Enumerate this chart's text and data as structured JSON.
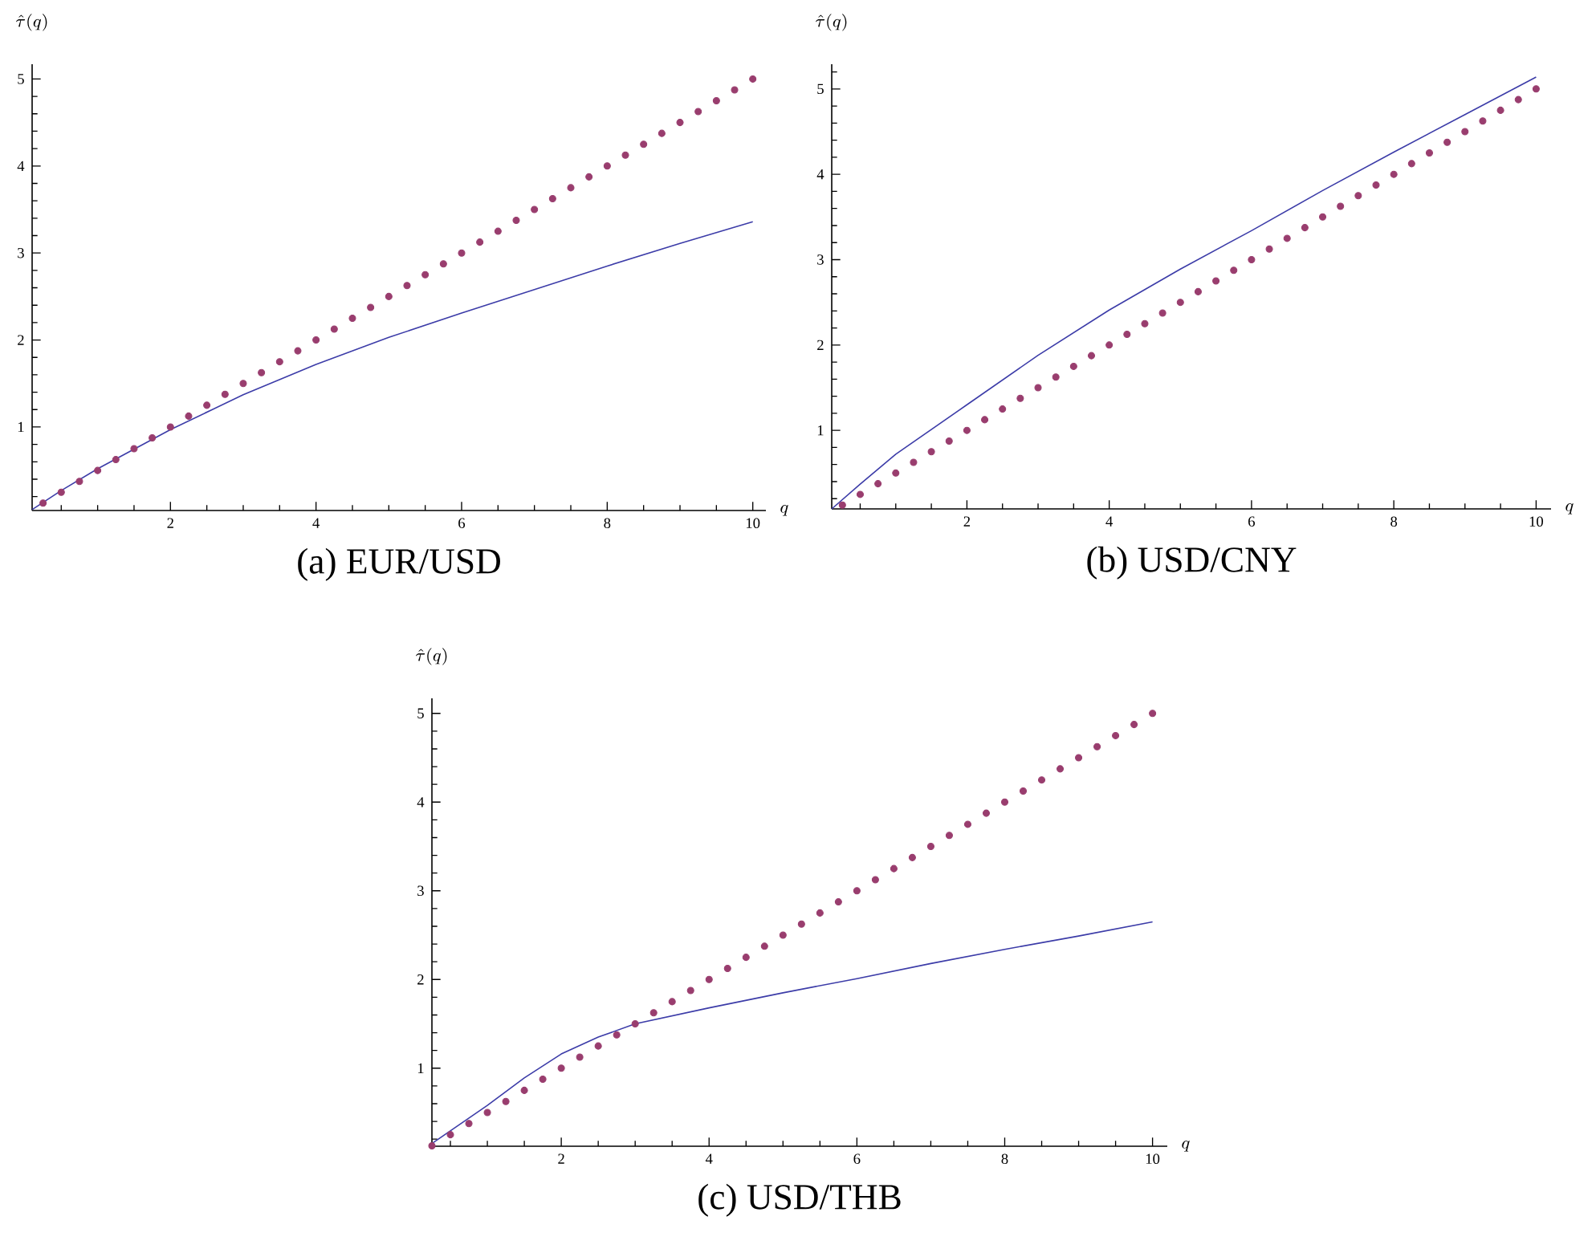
{
  "chart_data": [
    {
      "type": "line",
      "title": "(a) EUR/USD",
      "xlabel": "q",
      "ylabel": "\\hat{\\tau}(q)",
      "xlim": [
        0.1,
        10.18
      ],
      "ylim": [
        0.04,
        5.17
      ],
      "xticks": [
        {
          "value": 0.5,
          "label": null
        },
        {
          "value": 1,
          "label": null
        },
        {
          "value": 1.5,
          "label": null
        },
        2,
        {
          "value": 2.5,
          "label": null
        },
        {
          "value": 3,
          "label": null
        },
        {
          "value": 3.5,
          "label": null
        },
        4,
        {
          "value": 4.5,
          "label": null
        },
        {
          "value": 5,
          "label": null
        },
        {
          "value": 5.5,
          "label": null
        },
        6,
        {
          "value": 6.5,
          "label": null
        },
        {
          "value": 7,
          "label": null
        },
        {
          "value": 7.5,
          "label": null
        },
        8,
        {
          "value": 8.5,
          "label": null
        },
        {
          "value": 9,
          "label": null
        },
        {
          "value": 9.5,
          "label": null
        },
        10
      ],
      "yticks": [
        {
          "value": 0.2,
          "label": null
        },
        {
          "value": 0.4,
          "label": null
        },
        {
          "value": 0.6,
          "label": null
        },
        {
          "value": 0.8,
          "label": null
        },
        1,
        {
          "value": 1.2,
          "label": null
        },
        {
          "value": 1.4,
          "label": null
        },
        {
          "value": 1.6,
          "label": null
        },
        {
          "value": 1.8,
          "label": null
        },
        2,
        {
          "value": 2.2,
          "label": null
        },
        {
          "value": 2.4,
          "label": null
        },
        {
          "value": 2.6,
          "label": null
        },
        {
          "value": 2.8,
          "label": null
        },
        3,
        {
          "value": 3.2,
          "label": null
        },
        {
          "value": 3.4,
          "label": null
        },
        {
          "value": 3.6,
          "label": null
        },
        {
          "value": 3.8,
          "label": null
        },
        4,
        {
          "value": 4.2,
          "label": null
        },
        {
          "value": 4.4,
          "label": null
        },
        {
          "value": 4.6,
          "label": null
        },
        {
          "value": 4.8,
          "label": null
        },
        5
      ],
      "series": [
        {
          "type": "scatter",
          "marker": "circle",
          "color": "#993d6e",
          "x": [
            0.25,
            0.5,
            0.75,
            1,
            1.25,
            1.5,
            1.75,
            2,
            2.25,
            2.5,
            2.75,
            3,
            3.25,
            3.5,
            3.75,
            4,
            4.25,
            4.5,
            4.75,
            5,
            5.25,
            5.5,
            5.75,
            6,
            6.25,
            6.5,
            6.75,
            7,
            7.25,
            7.5,
            7.75,
            8,
            8.25,
            8.5,
            8.75,
            9,
            9.25,
            9.5,
            9.75,
            10
          ],
          "values": [
            0.125,
            0.25,
            0.375,
            0.5,
            0.625,
            0.75,
            0.875,
            1,
            1.125,
            1.25,
            1.375,
            1.5,
            1.625,
            1.75,
            1.875,
            2,
            2.125,
            2.25,
            2.375,
            2.5,
            2.625,
            2.75,
            2.875,
            3,
            3.125,
            3.25,
            3.375,
            3.5,
            3.625,
            3.75,
            3.875,
            4,
            4.125,
            4.25,
            4.375,
            4.5,
            4.625,
            4.75,
            4.875,
            5
          ]
        },
        {
          "color": "#3c3ca8",
          "x": [
            0.1,
            0.5,
            1,
            2,
            3,
            4,
            5,
            6,
            7,
            8,
            9,
            10
          ],
          "values": [
            0.05,
            0.27,
            0.52,
            0.97,
            1.37,
            1.72,
            2.03,
            2.31,
            2.58,
            2.85,
            3.11,
            3.36
          ]
        }
      ]
    },
    {
      "type": "line",
      "title": "(b) USD/CNY",
      "xlabel": "q",
      "ylabel": "\\hat{\\tau}(q)",
      "xlim": [
        0.1,
        10.21
      ],
      "ylim": [
        0.08,
        5.29
      ],
      "xticks": [
        {
          "value": 0.5,
          "label": null
        },
        {
          "value": 1,
          "label": null
        },
        {
          "value": 1.5,
          "label": null
        },
        2,
        {
          "value": 2.5,
          "label": null
        },
        {
          "value": 3,
          "label": null
        },
        {
          "value": 3.5,
          "label": null
        },
        4,
        {
          "value": 4.5,
          "label": null
        },
        {
          "value": 5,
          "label": null
        },
        {
          "value": 5.5,
          "label": null
        },
        6,
        {
          "value": 6.5,
          "label": null
        },
        {
          "value": 7,
          "label": null
        },
        {
          "value": 7.5,
          "label": null
        },
        8,
        {
          "value": 8.5,
          "label": null
        },
        {
          "value": 9,
          "label": null
        },
        {
          "value": 9.5,
          "label": null
        },
        10
      ],
      "yticks": [
        {
          "value": 0.2,
          "label": null
        },
        {
          "value": 0.4,
          "label": null
        },
        {
          "value": 0.6,
          "label": null
        },
        {
          "value": 0.8,
          "label": null
        },
        1,
        {
          "value": 1.2,
          "label": null
        },
        {
          "value": 1.4,
          "label": null
        },
        {
          "value": 1.6,
          "label": null
        },
        {
          "value": 1.8,
          "label": null
        },
        2,
        {
          "value": 2.2,
          "label": null
        },
        {
          "value": 2.4,
          "label": null
        },
        {
          "value": 2.6,
          "label": null
        },
        {
          "value": 2.8,
          "label": null
        },
        3,
        {
          "value": 3.2,
          "label": null
        },
        {
          "value": 3.4,
          "label": null
        },
        {
          "value": 3.6,
          "label": null
        },
        {
          "value": 3.8,
          "label": null
        },
        4,
        {
          "value": 4.2,
          "label": null
        },
        {
          "value": 4.4,
          "label": null
        },
        {
          "value": 4.6,
          "label": null
        },
        {
          "value": 4.8,
          "label": null
        },
        5,
        {
          "value": 5.2,
          "label": null
        }
      ],
      "series": [
        {
          "type": "scatter",
          "marker": "circle",
          "color": "#993d6e",
          "x": [
            0.25,
            0.5,
            0.75,
            1,
            1.25,
            1.5,
            1.75,
            2,
            2.25,
            2.5,
            2.75,
            3,
            3.25,
            3.5,
            3.75,
            4,
            4.25,
            4.5,
            4.75,
            5,
            5.25,
            5.5,
            5.75,
            6,
            6.25,
            6.5,
            6.75,
            7,
            7.25,
            7.5,
            7.75,
            8,
            8.25,
            8.5,
            8.75,
            9,
            9.25,
            9.5,
            9.75,
            10
          ],
          "values": [
            0.125,
            0.25,
            0.375,
            0.5,
            0.625,
            0.75,
            0.875,
            1,
            1.125,
            1.25,
            1.375,
            1.5,
            1.625,
            1.75,
            1.875,
            2,
            2.125,
            2.25,
            2.375,
            2.5,
            2.625,
            2.75,
            2.875,
            3,
            3.125,
            3.25,
            3.375,
            3.5,
            3.625,
            3.75,
            3.875,
            4,
            4.125,
            4.25,
            4.375,
            4.5,
            4.625,
            4.75,
            4.875,
            5
          ]
        },
        {
          "color": "#3c3ca8",
          "x": [
            0.1,
            0.5,
            1,
            2,
            3,
            4,
            5,
            6,
            7,
            8,
            9,
            10
          ],
          "values": [
            0.08,
            0.37,
            0.72,
            1.3,
            1.88,
            2.41,
            2.89,
            3.34,
            3.81,
            4.26,
            4.7,
            5.14
          ]
        }
      ]
    },
    {
      "type": "line",
      "title": "(c) USD/THB",
      "xlabel": "q",
      "ylabel": "\\hat{\\tau}(q)",
      "xlim": [
        0.25,
        10.2
      ],
      "ylim": [
        0.12,
        5.17
      ],
      "xticks": [
        {
          "value": 0.5,
          "label": null
        },
        {
          "value": 1,
          "label": null
        },
        {
          "value": 1.5,
          "label": null
        },
        2,
        {
          "value": 2.5,
          "label": null
        },
        {
          "value": 3,
          "label": null
        },
        {
          "value": 3.5,
          "label": null
        },
        4,
        {
          "value": 4.5,
          "label": null
        },
        {
          "value": 5,
          "label": null
        },
        {
          "value": 5.5,
          "label": null
        },
        6,
        {
          "value": 6.5,
          "label": null
        },
        {
          "value": 7,
          "label": null
        },
        {
          "value": 7.5,
          "label": null
        },
        8,
        {
          "value": 8.5,
          "label": null
        },
        {
          "value": 9,
          "label": null
        },
        {
          "value": 9.5,
          "label": null
        },
        10
      ],
      "yticks": [
        {
          "value": 0.2,
          "label": null
        },
        {
          "value": 0.4,
          "label": null
        },
        {
          "value": 0.6,
          "label": null
        },
        {
          "value": 0.8,
          "label": null
        },
        1,
        {
          "value": 1.2,
          "label": null
        },
        {
          "value": 1.4,
          "label": null
        },
        {
          "value": 1.6,
          "label": null
        },
        {
          "value": 1.8,
          "label": null
        },
        2,
        {
          "value": 2.2,
          "label": null
        },
        {
          "value": 2.4,
          "label": null
        },
        {
          "value": 2.6,
          "label": null
        },
        {
          "value": 2.8,
          "label": null
        },
        3,
        {
          "value": 3.2,
          "label": null
        },
        {
          "value": 3.4,
          "label": null
        },
        {
          "value": 3.6,
          "label": null
        },
        {
          "value": 3.8,
          "label": null
        },
        4,
        {
          "value": 4.2,
          "label": null
        },
        {
          "value": 4.4,
          "label": null
        },
        {
          "value": 4.6,
          "label": null
        },
        {
          "value": 4.8,
          "label": null
        },
        5
      ],
      "series": [
        {
          "type": "scatter",
          "marker": "circle",
          "color": "#993d6e",
          "x": [
            0.25,
            0.5,
            0.75,
            1,
            1.25,
            1.5,
            1.75,
            2,
            2.25,
            2.5,
            2.75,
            3,
            3.25,
            3.5,
            3.75,
            4,
            4.25,
            4.5,
            4.75,
            5,
            5.25,
            5.5,
            5.75,
            6,
            6.25,
            6.5,
            6.75,
            7,
            7.25,
            7.5,
            7.75,
            8,
            8.25,
            8.5,
            8.75,
            9,
            9.25,
            9.5,
            9.75,
            10
          ],
          "values": [
            0.125,
            0.25,
            0.375,
            0.5,
            0.625,
            0.75,
            0.875,
            1,
            1.125,
            1.25,
            1.375,
            1.5,
            1.625,
            1.75,
            1.875,
            2,
            2.125,
            2.25,
            2.375,
            2.5,
            2.625,
            2.75,
            2.875,
            3,
            3.125,
            3.25,
            3.375,
            3.5,
            3.625,
            3.75,
            3.875,
            4,
            4.125,
            4.25,
            4.375,
            4.5,
            4.625,
            4.75,
            4.875,
            5
          ]
        },
        {
          "color": "#3c3ca8",
          "x": [
            0.25,
            1,
            1.5,
            2,
            2.5,
            3,
            4,
            5,
            6,
            7,
            8,
            9,
            10
          ],
          "values": [
            0.15,
            0.58,
            0.89,
            1.16,
            1.35,
            1.5,
            1.68,
            1.85,
            2.01,
            2.18,
            2.34,
            2.49,
            2.65
          ]
        }
      ]
    }
  ]
}
